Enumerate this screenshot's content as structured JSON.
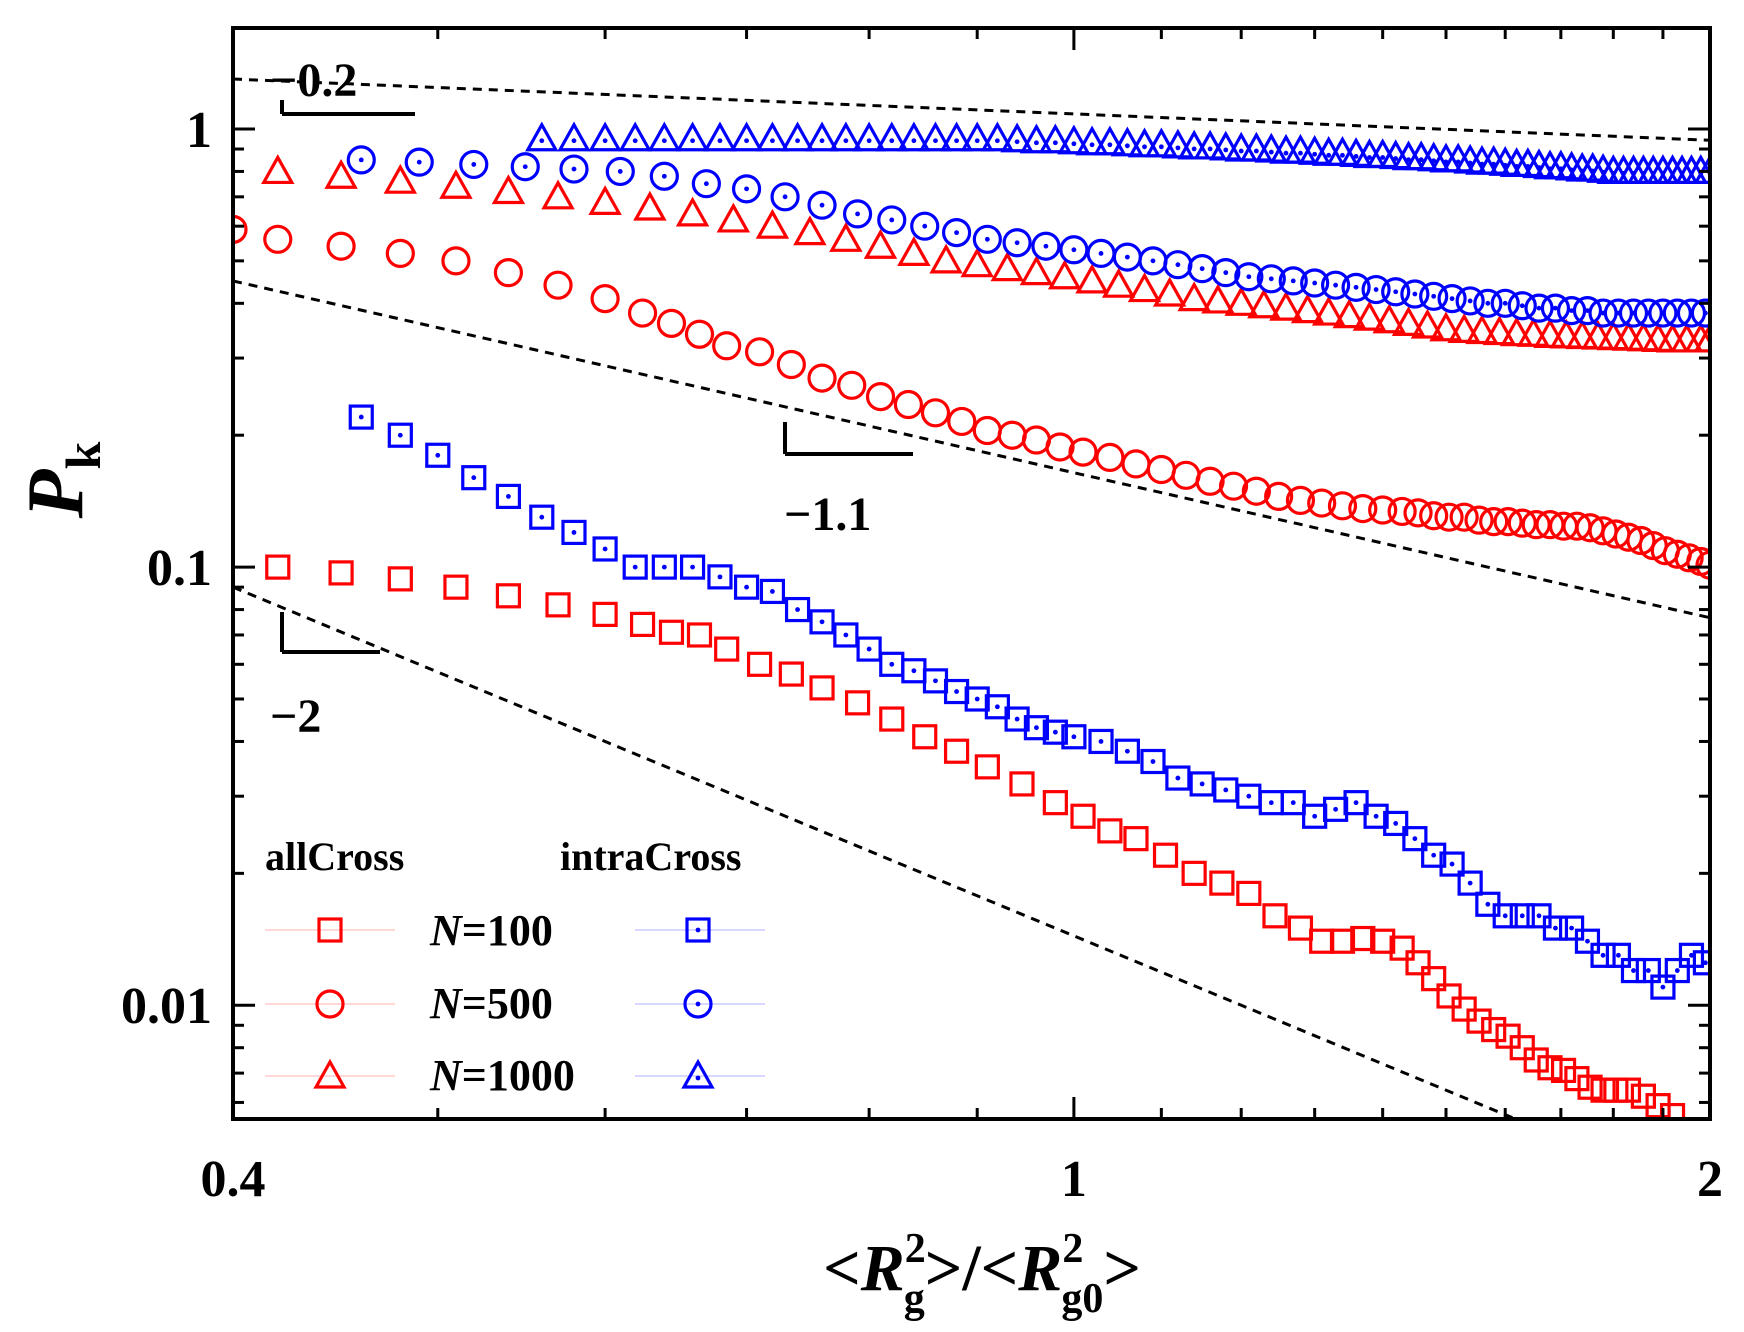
{
  "chart_data": {
    "type": "scatter",
    "xscale": "log",
    "yscale": "log",
    "xlim": [
      0.4,
      2
    ],
    "ylim": [
      0.0055,
      1.7
    ],
    "xticks": [
      {
        "value": 0.4,
        "label": "0.4"
      },
      {
        "value": 1,
        "label": "1"
      },
      {
        "value": 2,
        "label": "2"
      }
    ],
    "yticks": [
      {
        "value": 0.01,
        "label": "0.01"
      },
      {
        "value": 0.1,
        "label": "0.1"
      },
      {
        "value": 1,
        "label": "1"
      }
    ],
    "xlabel": {
      "prefix": "<",
      "main": "R",
      "sup": "2",
      "sub": "g",
      "mid": ">/<",
      "main2": "R",
      "sup2": "2",
      "sub2": "g0",
      "suffix": ">"
    },
    "ylabel": {
      "main": "P",
      "sub": "k"
    },
    "legend": {
      "placement": "bottom-left",
      "header_left": "allCross",
      "header_right": "intraCross",
      "rows": [
        {
          "label_var": "N",
          "label_val": "=100",
          "marker": "square"
        },
        {
          "label_var": "N",
          "label_val": "=500",
          "marker": "circle"
        },
        {
          "label_var": "N",
          "label_val": "=1000",
          "marker": "triangle"
        }
      ]
    },
    "colors": {
      "allCross": "#ff0000",
      "intraCross": "#0000ff",
      "axis": "#000000"
    },
    "slope_lines": [
      {
        "label": "−0.2",
        "slope": -0.2,
        "anchor_x": 0.4,
        "anchor_y": 1.3,
        "label_pos": "upper-left"
      },
      {
        "label": "−1.1",
        "slope": -1.1,
        "anchor_x": 0.4,
        "anchor_y": 0.45,
        "label_pos": "middle"
      },
      {
        "label": "−2",
        "slope": -2,
        "anchor_x": 0.4,
        "anchor_y": 0.09,
        "label_pos": "lower-left"
      }
    ],
    "series": [
      {
        "name": "allCross N=100",
        "group": "allCross",
        "marker": "square",
        "color": "#ff0000",
        "dotted": false,
        "x": [
          0.42,
          0.45,
          0.48,
          0.51,
          0.54,
          0.57,
          0.6,
          0.625,
          0.645,
          0.665,
          0.685,
          0.71,
          0.735,
          0.76,
          0.79,
          0.82,
          0.85,
          0.88,
          0.91,
          0.945,
          0.98,
          1.01,
          1.04,
          1.07,
          1.105,
          1.14,
          1.175,
          1.21,
          1.245,
          1.28,
          1.31,
          1.34,
          1.37,
          1.4,
          1.43,
          1.455,
          1.48,
          1.505,
          1.53,
          1.555,
          1.58,
          1.605,
          1.63,
          1.655,
          1.68,
          1.705,
          1.73,
          1.755,
          1.78,
          1.805,
          1.83,
          1.86,
          1.89,
          1.92
        ],
        "y": [
          0.1,
          0.097,
          0.094,
          0.09,
          0.086,
          0.082,
          0.078,
          0.074,
          0.071,
          0.07,
          0.065,
          0.06,
          0.057,
          0.053,
          0.049,
          0.045,
          0.041,
          0.038,
          0.035,
          0.032,
          0.029,
          0.027,
          0.025,
          0.024,
          0.022,
          0.02,
          0.019,
          0.018,
          0.016,
          0.015,
          0.014,
          0.014,
          0.0142,
          0.014,
          0.0135,
          0.0125,
          0.0115,
          0.0105,
          0.0098,
          0.0092,
          0.0088,
          0.0085,
          0.008,
          0.0075,
          0.0072,
          0.0071,
          0.0068,
          0.0065,
          0.0064,
          0.0064,
          0.0064,
          0.0062,
          0.0059,
          0.0056
        ]
      },
      {
        "name": "allCross N=500",
        "group": "allCross",
        "marker": "circle",
        "color": "#ff0000",
        "dotted": false,
        "x": [
          0.4,
          0.42,
          0.45,
          0.48,
          0.51,
          0.54,
          0.57,
          0.6,
          0.625,
          0.645,
          0.665,
          0.685,
          0.71,
          0.735,
          0.76,
          0.785,
          0.81,
          0.835,
          0.86,
          0.885,
          0.91,
          0.935,
          0.96,
          0.985,
          1.01,
          1.04,
          1.07,
          1.1,
          1.13,
          1.16,
          1.19,
          1.22,
          1.25,
          1.28,
          1.31,
          1.34,
          1.37,
          1.4,
          1.43,
          1.455,
          1.48,
          1.505,
          1.53,
          1.555,
          1.58,
          1.605,
          1.63,
          1.655,
          1.68,
          1.705,
          1.73,
          1.755,
          1.78,
          1.805,
          1.83,
          1.855,
          1.88,
          1.905,
          1.93,
          1.955,
          1.98,
          2.0
        ],
        "y": [
          0.59,
          0.56,
          0.54,
          0.52,
          0.5,
          0.47,
          0.44,
          0.41,
          0.38,
          0.36,
          0.34,
          0.32,
          0.31,
          0.29,
          0.27,
          0.26,
          0.245,
          0.235,
          0.225,
          0.215,
          0.205,
          0.2,
          0.195,
          0.188,
          0.183,
          0.178,
          0.172,
          0.167,
          0.162,
          0.157,
          0.153,
          0.149,
          0.145,
          0.142,
          0.14,
          0.138,
          0.136,
          0.135,
          0.134,
          0.133,
          0.131,
          0.13,
          0.13,
          0.128,
          0.127,
          0.127,
          0.126,
          0.125,
          0.125,
          0.124,
          0.124,
          0.123,
          0.121,
          0.119,
          0.117,
          0.115,
          0.112,
          0.109,
          0.107,
          0.105,
          0.103,
          0.101
        ]
      },
      {
        "name": "allCross N=1000",
        "group": "allCross",
        "marker": "triangle",
        "color": "#ff0000",
        "dotted": false,
        "x": [
          0.42,
          0.45,
          0.48,
          0.51,
          0.54,
          0.57,
          0.6,
          0.63,
          0.66,
          0.69,
          0.72,
          0.75,
          0.78,
          0.81,
          0.84,
          0.87,
          0.9,
          0.93,
          0.96,
          0.99,
          1.02,
          1.05,
          1.08,
          1.11,
          1.14,
          1.17,
          1.2,
          1.23,
          1.26,
          1.29,
          1.32,
          1.35,
          1.38,
          1.41,
          1.44,
          1.47,
          1.5,
          1.53,
          1.56,
          1.59,
          1.62,
          1.65,
          1.68,
          1.71,
          1.74,
          1.77,
          1.8,
          1.83,
          1.86,
          1.89,
          1.92,
          1.95,
          1.98,
          2.0
        ],
        "y": [
          0.8,
          0.78,
          0.76,
          0.74,
          0.72,
          0.7,
          0.68,
          0.66,
          0.64,
          0.62,
          0.6,
          0.58,
          0.56,
          0.54,
          0.52,
          0.5,
          0.49,
          0.48,
          0.47,
          0.46,
          0.45,
          0.44,
          0.43,
          0.42,
          0.41,
          0.405,
          0.4,
          0.395,
          0.39,
          0.385,
          0.38,
          0.375,
          0.37,
          0.365,
          0.36,
          0.355,
          0.35,
          0.347,
          0.345,
          0.343,
          0.341,
          0.34,
          0.338,
          0.337,
          0.336,
          0.335,
          0.334,
          0.333,
          0.332,
          0.331,
          0.33,
          0.33,
          0.33,
          0.33
        ]
      },
      {
        "name": "intraCross N=100",
        "group": "intraCross",
        "marker": "square",
        "color": "#0000ff",
        "dotted": true,
        "x": [
          0.46,
          0.48,
          0.5,
          0.52,
          0.54,
          0.56,
          0.58,
          0.6,
          0.62,
          0.64,
          0.66,
          0.68,
          0.7,
          0.72,
          0.74,
          0.76,
          0.78,
          0.8,
          0.82,
          0.84,
          0.86,
          0.88,
          0.9,
          0.92,
          0.94,
          0.96,
          0.98,
          1.0,
          1.03,
          1.06,
          1.09,
          1.12,
          1.15,
          1.18,
          1.21,
          1.24,
          1.27,
          1.3,
          1.33,
          1.36,
          1.39,
          1.42,
          1.45,
          1.48,
          1.51,
          1.54,
          1.57,
          1.6,
          1.63,
          1.66,
          1.69,
          1.72,
          1.75,
          1.78,
          1.81,
          1.84,
          1.87,
          1.9,
          1.93,
          1.96,
          1.99
        ],
        "y": [
          0.22,
          0.2,
          0.18,
          0.16,
          0.145,
          0.13,
          0.12,
          0.11,
          0.1,
          0.1,
          0.1,
          0.095,
          0.09,
          0.088,
          0.08,
          0.075,
          0.07,
          0.065,
          0.06,
          0.058,
          0.055,
          0.052,
          0.05,
          0.048,
          0.045,
          0.043,
          0.042,
          0.041,
          0.04,
          0.038,
          0.036,
          0.033,
          0.032,
          0.031,
          0.03,
          0.029,
          0.029,
          0.027,
          0.028,
          0.029,
          0.027,
          0.026,
          0.024,
          0.022,
          0.021,
          0.019,
          0.017,
          0.016,
          0.016,
          0.016,
          0.015,
          0.015,
          0.014,
          0.013,
          0.013,
          0.012,
          0.012,
          0.011,
          0.012,
          0.013,
          0.0125
        ]
      },
      {
        "name": "intraCross N=500",
        "group": "intraCross",
        "marker": "circle",
        "color": "#0000ff",
        "dotted": true,
        "x": [
          0.46,
          0.49,
          0.52,
          0.55,
          0.58,
          0.61,
          0.64,
          0.67,
          0.7,
          0.73,
          0.76,
          0.79,
          0.82,
          0.85,
          0.88,
          0.91,
          0.94,
          0.97,
          1.0,
          1.03,
          1.06,
          1.09,
          1.12,
          1.15,
          1.18,
          1.21,
          1.24,
          1.27,
          1.3,
          1.33,
          1.36,
          1.39,
          1.42,
          1.45,
          1.48,
          1.51,
          1.54,
          1.57,
          1.6,
          1.63,
          1.66,
          1.69,
          1.72,
          1.75,
          1.78,
          1.81,
          1.84,
          1.87,
          1.9,
          1.93,
          1.96,
          1.99
        ],
        "y": [
          0.85,
          0.84,
          0.83,
          0.82,
          0.81,
          0.8,
          0.78,
          0.75,
          0.73,
          0.7,
          0.67,
          0.64,
          0.62,
          0.6,
          0.58,
          0.56,
          0.55,
          0.54,
          0.53,
          0.52,
          0.51,
          0.5,
          0.49,
          0.48,
          0.47,
          0.46,
          0.455,
          0.45,
          0.445,
          0.44,
          0.435,
          0.43,
          0.425,
          0.42,
          0.415,
          0.41,
          0.405,
          0.4,
          0.4,
          0.395,
          0.39,
          0.39,
          0.385,
          0.385,
          0.38,
          0.38,
          0.38,
          0.38,
          0.38,
          0.38,
          0.38,
          0.38
        ]
      },
      {
        "name": "intraCross N=1000",
        "group": "intraCross",
        "marker": "triangle",
        "color": "#0000ff",
        "dotted": true,
        "x": [
          0.56,
          0.58,
          0.6,
          0.62,
          0.64,
          0.66,
          0.68,
          0.7,
          0.72,
          0.74,
          0.76,
          0.78,
          0.8,
          0.82,
          0.84,
          0.86,
          0.88,
          0.9,
          0.92,
          0.94,
          0.96,
          0.98,
          1.0,
          1.02,
          1.04,
          1.06,
          1.08,
          1.1,
          1.12,
          1.14,
          1.16,
          1.18,
          1.2,
          1.22,
          1.24,
          1.26,
          1.28,
          1.3,
          1.32,
          1.34,
          1.36,
          1.38,
          1.4,
          1.42,
          1.44,
          1.46,
          1.48,
          1.5,
          1.52,
          1.54,
          1.56,
          1.58,
          1.6,
          1.62,
          1.64,
          1.66,
          1.68,
          1.7,
          1.72,
          1.74,
          1.76,
          1.78,
          1.8,
          1.82,
          1.84,
          1.86,
          1.88,
          1.9,
          1.92,
          1.94,
          1.96,
          1.98,
          2.0
        ],
        "y": [
          0.95,
          0.95,
          0.95,
          0.95,
          0.95,
          0.95,
          0.95,
          0.95,
          0.95,
          0.95,
          0.95,
          0.95,
          0.95,
          0.95,
          0.95,
          0.95,
          0.95,
          0.95,
          0.95,
          0.945,
          0.94,
          0.94,
          0.935,
          0.93,
          0.93,
          0.925,
          0.92,
          0.92,
          0.915,
          0.91,
          0.91,
          0.905,
          0.9,
          0.9,
          0.895,
          0.89,
          0.89,
          0.885,
          0.88,
          0.88,
          0.875,
          0.87,
          0.87,
          0.865,
          0.86,
          0.86,
          0.855,
          0.85,
          0.85,
          0.845,
          0.84,
          0.84,
          0.835,
          0.83,
          0.83,
          0.825,
          0.82,
          0.82,
          0.815,
          0.81,
          0.81,
          0.805,
          0.8,
          0.8,
          0.8,
          0.8,
          0.8,
          0.8,
          0.8,
          0.8,
          0.8,
          0.8,
          0.8
        ]
      }
    ]
  }
}
